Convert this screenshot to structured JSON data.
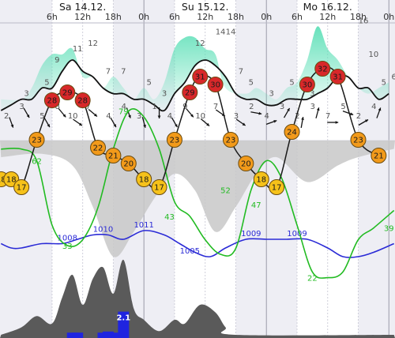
{
  "chart_data": {
    "type": "line",
    "colors": {
      "temperature_line": "#1a1a1a",
      "humidity_line": "#22bb22",
      "pressure_line": "#2b2bd6",
      "wind_gust_fill": "#5fe0b8",
      "cloud_fill": "#c8c8c8",
      "precip_area": "#5a5a5a",
      "precip_bar": "#1f24e0",
      "night_shade": "#eeeef4",
      "temp_hot": "#d8282a",
      "temp_warm": "#f29a1a",
      "temp_mild": "#f6c21a"
    },
    "days": [
      {
        "label": "Sa 14.12.",
        "at_hour": 12
      },
      {
        "label": "Su 15.12.",
        "at_hour": 36
      },
      {
        "label": "Mo 16.12.",
        "at_hour": 60
      }
    ],
    "hour_ticks": [
      {
        "label": "6h",
        "hour": 6
      },
      {
        "label": "12h",
        "hour": 12
      },
      {
        "label": "18h",
        "hour": 18
      },
      {
        "label": "0h",
        "hour": 24
      },
      {
        "label": "6h",
        "hour": 30
      },
      {
        "label": "12h",
        "hour": 36
      },
      {
        "label": "18h",
        "hour": 42
      },
      {
        "label": "0h",
        "hour": 48
      },
      {
        "label": "6h",
        "hour": 54
      },
      {
        "label": "12h",
        "hour": 60
      },
      {
        "label": "18h",
        "hour": 66
      },
      {
        "label": "0h",
        "hour": 72
      }
    ],
    "x_range_hours": [
      -4.2,
      73.2
    ],
    "wind_speed": [
      {
        "h": -4,
        "v": 1
      },
      {
        "h": -2,
        "v": 2
      },
      {
        "h": 0,
        "v": 3
      },
      {
        "h": 2,
        "v": 3
      },
      {
        "h": 4,
        "v": 5
      },
      {
        "h": 6,
        "v": 5
      },
      {
        "h": 8,
        "v": 8
      },
      {
        "h": 10,
        "v": 10
      },
      {
        "h": 12,
        "v": 8
      },
      {
        "h": 14,
        "v": 7
      },
      {
        "h": 16,
        "v": 5
      },
      {
        "h": 18,
        "v": 4
      },
      {
        "h": 20,
        "v": 4
      },
      {
        "h": 22,
        "v": 3
      },
      {
        "h": 24,
        "v": 3
      },
      {
        "h": 26,
        "v": 2
      },
      {
        "h": 28,
        "v": 1
      },
      {
        "h": 30,
        "v": 4
      },
      {
        "h": 32,
        "v": 6
      },
      {
        "h": 34,
        "v": 9
      },
      {
        "h": 36,
        "v": 10
      },
      {
        "h": 38,
        "v": 9
      },
      {
        "h": 40,
        "v": 7
      },
      {
        "h": 42,
        "v": 4
      },
      {
        "h": 44,
        "v": 3
      },
      {
        "h": 46,
        "v": 3
      },
      {
        "h": 48,
        "v": 2
      },
      {
        "h": 50,
        "v": 2
      },
      {
        "h": 52,
        "v": 3
      },
      {
        "h": 54,
        "v": 3
      },
      {
        "h": 56,
        "v": 3
      },
      {
        "h": 58,
        "v": 4
      },
      {
        "h": 60,
        "v": 5
      },
      {
        "h": 62,
        "v": 7
      },
      {
        "h": 64,
        "v": 7
      },
      {
        "h": 66,
        "v": 5
      },
      {
        "h": 68,
        "v": 5
      },
      {
        "h": 70,
        "v": 3
      },
      {
        "h": 72,
        "v": 4
      }
    ],
    "wind_gust": [
      {
        "h": -4,
        "v": 3
      },
      {
        "h": 0,
        "v": 3
      },
      {
        "h": 2,
        "v": 5
      },
      {
        "h": 4,
        "v": 9
      },
      {
        "h": 6,
        "v": 11
      },
      {
        "h": 8,
        "v": 11
      },
      {
        "h": 10,
        "v": 12
      },
      {
        "h": 12,
        "v": 7
      },
      {
        "h": 14,
        "v": 7
      },
      {
        "h": 16,
        "v": 5
      },
      {
        "h": 18,
        "v": 7
      },
      {
        "h": 20,
        "v": 5
      },
      {
        "h": 22,
        "v": 3
      },
      {
        "h": 24,
        "v": 5
      },
      {
        "h": 26,
        "v": 3
      },
      {
        "h": 28,
        "v": 6
      },
      {
        "h": 30,
        "v": 12
      },
      {
        "h": 32,
        "v": 14
      },
      {
        "h": 34,
        "v": 14
      },
      {
        "h": 36,
        "v": 12
      },
      {
        "h": 38,
        "v": 11
      },
      {
        "h": 40,
        "v": 5
      },
      {
        "h": 44,
        "v": 4
      },
      {
        "h": 46,
        "v": 5
      },
      {
        "h": 48,
        "v": 4
      },
      {
        "h": 50,
        "v": 3
      },
      {
        "h": 52,
        "v": 5
      },
      {
        "h": 54,
        "v": 6
      },
      {
        "h": 56,
        "v": 10
      },
      {
        "h": 58,
        "v": 16
      },
      {
        "h": 60,
        "v": 12
      },
      {
        "h": 62,
        "v": 10
      },
      {
        "h": 64,
        "v": 7
      },
      {
        "h": 66,
        "v": 5
      },
      {
        "h": 68,
        "v": 4
      },
      {
        "h": 70,
        "v": 5
      },
      {
        "h": 72,
        "v": 6
      }
    ],
    "wind_speed_labels": [
      {
        "h": 1,
        "v": 3
      },
      {
        "h": 5,
        "v": 5
      },
      {
        "h": 7,
        "v": 9
      },
      {
        "h": 11,
        "v": 11
      },
      {
        "h": 14,
        "v": 12
      },
      {
        "h": 17,
        "v": 7
      },
      {
        "h": 20,
        "v": 7
      },
      {
        "h": 25,
        "v": 5
      },
      {
        "h": 28,
        "v": 3
      },
      {
        "h": 34,
        "v": 6
      },
      {
        "h": 35,
        "v": 12
      },
      {
        "h": 39,
        "v": 14
      },
      {
        "h": 41,
        "v": 14
      },
      {
        "h": 43,
        "v": 7
      },
      {
        "h": 45,
        "v": 5
      },
      {
        "h": 49,
        "v": 3
      },
      {
        "h": 53,
        "v": 5
      },
      {
        "h": 57,
        "v": 3
      },
      {
        "h": 63,
        "v": 6
      },
      {
        "h": 67,
        "v": 16
      },
      {
        "h": 69,
        "v": 10
      },
      {
        "h": 71,
        "v": 5
      },
      {
        "h": 73,
        "v": 6
      }
    ],
    "wind_arrow_labels": [
      {
        "h": -2,
        "v": 2
      },
      {
        "h": 1,
        "v": 3
      },
      {
        "h": 5,
        "v": 5
      },
      {
        "h": 8,
        "v": 8
      },
      {
        "h": 11,
        "v": 10
      },
      {
        "h": 14,
        "v": 7
      },
      {
        "h": 18,
        "v": 4
      },
      {
        "h": 21,
        "v": 4
      },
      {
        "h": 24,
        "v": 3
      },
      {
        "h": 27,
        "v": 1
      },
      {
        "h": 30,
        "v": 4
      },
      {
        "h": 33,
        "v": 9
      },
      {
        "h": 36,
        "v": 10
      },
      {
        "h": 39,
        "v": 7
      },
      {
        "h": 43,
        "v": 3
      },
      {
        "h": 46,
        "v": 2
      },
      {
        "h": 49,
        "v": 4
      },
      {
        "h": 52,
        "v": 3
      },
      {
        "h": 55,
        "v": 2
      },
      {
        "h": 58,
        "v": 3
      },
      {
        "h": 61,
        "v": 7
      },
      {
        "h": 64,
        "v": 5
      },
      {
        "h": 67,
        "v": 2
      },
      {
        "h": 70,
        "v": 4
      }
    ],
    "wind_direction_deg": [
      {
        "h": -2,
        "v": 160
      },
      {
        "h": 1,
        "v": 150
      },
      {
        "h": 5,
        "v": 150
      },
      {
        "h": 8,
        "v": 140
      },
      {
        "h": 11,
        "v": 125
      },
      {
        "h": 14,
        "v": 130
      },
      {
        "h": 18,
        "v": 150
      },
      {
        "h": 21,
        "v": 160
      },
      {
        "h": 24,
        "v": 165
      },
      {
        "h": 27,
        "v": 180
      },
      {
        "h": 30,
        "v": 150
      },
      {
        "h": 33,
        "v": 140
      },
      {
        "h": 36,
        "v": 130
      },
      {
        "h": 39,
        "v": 125
      },
      {
        "h": 43,
        "v": 125
      },
      {
        "h": 46,
        "v": 100
      },
      {
        "h": 49,
        "v": 70
      },
      {
        "h": 52,
        "v": 30
      },
      {
        "h": 55,
        "v": 10
      },
      {
        "h": 58,
        "v": 15
      },
      {
        "h": 61,
        "v": 90
      },
      {
        "h": 64,
        "v": 110
      },
      {
        "h": 67,
        "v": 60
      },
      {
        "h": 70,
        "v": 20
      }
    ],
    "temperature": [
      {
        "h": -4,
        "v": 18
      },
      {
        "h": -2,
        "v": 18
      },
      {
        "h": 0,
        "v": 17
      },
      {
        "h": 3,
        "v": 23
      },
      {
        "h": 6,
        "v": 28
      },
      {
        "h": 9,
        "v": 29
      },
      {
        "h": 12,
        "v": 28
      },
      {
        "h": 15,
        "v": 22
      },
      {
        "h": 18,
        "v": 21
      },
      {
        "h": 21,
        "v": 20
      },
      {
        "h": 24,
        "v": 18
      },
      {
        "h": 27,
        "v": 17
      },
      {
        "h": 30,
        "v": 23
      },
      {
        "h": 33,
        "v": 29
      },
      {
        "h": 35,
        "v": 31
      },
      {
        "h": 38,
        "v": 30
      },
      {
        "h": 41,
        "v": 23
      },
      {
        "h": 44,
        "v": 20
      },
      {
        "h": 47,
        "v": 18
      },
      {
        "h": 50,
        "v": 17
      },
      {
        "h": 53,
        "v": 24
      },
      {
        "h": 56,
        "v": 30
      },
      {
        "h": 59,
        "v": 32
      },
      {
        "h": 62,
        "v": 31
      },
      {
        "h": 66,
        "v": 23
      },
      {
        "h": 70,
        "v": 21
      }
    ],
    "humidity_percent": [
      {
        "h": -4,
        "v": 66
      },
      {
        "h": 0,
        "v": 66
      },
      {
        "h": 3,
        "v": 62
      },
      {
        "h": 6,
        "v": 40
      },
      {
        "h": 9,
        "v": 33
      },
      {
        "h": 12,
        "v": 35
      },
      {
        "h": 15,
        "v": 46
      },
      {
        "h": 18,
        "v": 66
      },
      {
        "h": 21,
        "v": 79
      },
      {
        "h": 24,
        "v": 77
      },
      {
        "h": 27,
        "v": 66
      },
      {
        "h": 30,
        "v": 48
      },
      {
        "h": 33,
        "v": 43
      },
      {
        "h": 36,
        "v": 35
      },
      {
        "h": 39,
        "v": 30
      },
      {
        "h": 42,
        "v": 32
      },
      {
        "h": 45,
        "v": 52
      },
      {
        "h": 48,
        "v": 62
      },
      {
        "h": 51,
        "v": 56
      },
      {
        "h": 54,
        "v": 40
      },
      {
        "h": 57,
        "v": 24
      },
      {
        "h": 60,
        "v": 22
      },
      {
        "h": 63,
        "v": 24
      },
      {
        "h": 66,
        "v": 35
      },
      {
        "h": 69,
        "v": 39
      },
      {
        "h": 73,
        "v": 45
      }
    ],
    "humidity_labels": [
      {
        "h": 3,
        "v": 62
      },
      {
        "h": 9,
        "v": 33
      },
      {
        "h": 20,
        "v": 79
      },
      {
        "h": 29,
        "v": 43
      },
      {
        "h": 40,
        "v": 52
      },
      {
        "h": 46,
        "v": 47
      },
      {
        "h": 57,
        "v": 22
      },
      {
        "h": 72,
        "v": 39
      }
    ],
    "pressure_hpa": [
      {
        "h": -4,
        "v": 1008
      },
      {
        "h": -2,
        "v": 1007
      },
      {
        "h": 0,
        "v": 1007
      },
      {
        "h": 4,
        "v": 1008
      },
      {
        "h": 8,
        "v": 1008
      },
      {
        "h": 11,
        "v": 1009
      },
      {
        "h": 14,
        "v": 1010
      },
      {
        "h": 17,
        "v": 1010
      },
      {
        "h": 20,
        "v": 1009
      },
      {
        "h": 24,
        "v": 1011
      },
      {
        "h": 28,
        "v": 1010
      },
      {
        "h": 31,
        "v": 1008
      },
      {
        "h": 34,
        "v": 1006
      },
      {
        "h": 37,
        "v": 1005
      },
      {
        "h": 40,
        "v": 1007
      },
      {
        "h": 44,
        "v": 1009
      },
      {
        "h": 48,
        "v": 1009
      },
      {
        "h": 52,
        "v": 1009
      },
      {
        "h": 56,
        "v": 1009
      },
      {
        "h": 60,
        "v": 1007
      },
      {
        "h": 63,
        "v": 1005
      },
      {
        "h": 66,
        "v": 1005
      },
      {
        "h": 69,
        "v": 1006
      },
      {
        "h": 73,
        "v": 1008
      }
    ],
    "pressure_labels": [
      {
        "h": 9,
        "v": 1008
      },
      {
        "h": 16,
        "v": 1010
      },
      {
        "h": 24,
        "v": 1011
      },
      {
        "h": 33,
        "v": 1005
      },
      {
        "h": 45,
        "v": 1009
      },
      {
        "h": 54,
        "v": 1009
      }
    ],
    "precipitation_mm": [
      {
        "h": 10,
        "v": 0.2
      },
      {
        "h": 11,
        "v": 0.2
      },
      {
        "h": 16,
        "v": 0.2
      },
      {
        "h": 17,
        "v": 0.3
      },
      {
        "h": 18,
        "v": 0.2
      },
      {
        "h": 20,
        "v": 2.1
      }
    ],
    "precip_label": {
      "h": 20,
      "v": 2.1
    },
    "cloud_cover_percent": [
      {
        "h": -4,
        "v": 10
      },
      {
        "h": 4,
        "v": 8
      },
      {
        "h": 10,
        "v": 15
      },
      {
        "h": 14,
        "v": 40
      },
      {
        "h": 18,
        "v": 70
      },
      {
        "h": 22,
        "v": 55
      },
      {
        "h": 26,
        "v": 35
      },
      {
        "h": 30,
        "v": 20
      },
      {
        "h": 34,
        "v": 30
      },
      {
        "h": 38,
        "v": 55
      },
      {
        "h": 42,
        "v": 40
      },
      {
        "h": 46,
        "v": 20
      },
      {
        "h": 50,
        "v": 10
      },
      {
        "h": 56,
        "v": 25
      },
      {
        "h": 62,
        "v": 15
      },
      {
        "h": 66,
        "v": 10
      },
      {
        "h": 73,
        "v": 5
      }
    ],
    "convective_activity": [
      {
        "h": -4,
        "v": 0.0
      },
      {
        "h": 0,
        "v": 0.1
      },
      {
        "h": 3,
        "v": 0.25
      },
      {
        "h": 6,
        "v": 0.15
      },
      {
        "h": 8,
        "v": 0.5
      },
      {
        "h": 10,
        "v": 0.8
      },
      {
        "h": 12,
        "v": 0.4
      },
      {
        "h": 14,
        "v": 0.75
      },
      {
        "h": 16,
        "v": 0.9
      },
      {
        "h": 18,
        "v": 0.55
      },
      {
        "h": 20,
        "v": 1.0
      },
      {
        "h": 22,
        "v": 0.35
      },
      {
        "h": 24,
        "v": 0.2
      },
      {
        "h": 27,
        "v": 0.05
      },
      {
        "h": 30,
        "v": 0.2
      },
      {
        "h": 32,
        "v": 0.15
      },
      {
        "h": 35,
        "v": 0.4
      },
      {
        "h": 38,
        "v": 0.3
      },
      {
        "h": 40,
        "v": 0.1
      },
      {
        "h": 42,
        "v": 0.0
      },
      {
        "h": 73,
        "v": 0.0
      }
    ]
  }
}
